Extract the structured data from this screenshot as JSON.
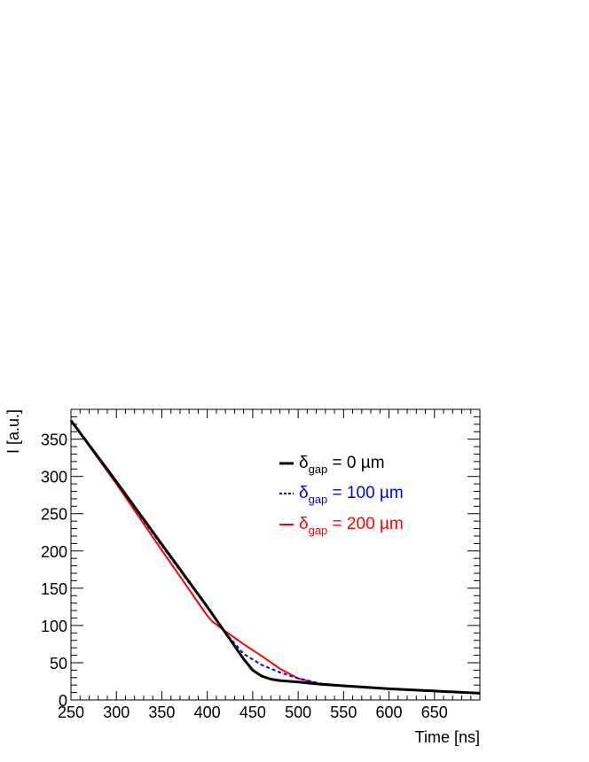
{
  "chart_data": {
    "type": "line",
    "title": "",
    "xlabel": "Time [ns]",
    "ylabel": "I [a.u.]",
    "xlim": [
      250,
      700
    ],
    "ylim": [
      0,
      390
    ],
    "xticks": [
      250,
      300,
      350,
      400,
      450,
      500,
      550,
      600,
      650
    ],
    "yticks": [
      0,
      50,
      100,
      150,
      200,
      250,
      300,
      350
    ],
    "grid": false,
    "legend_position": "top-right",
    "series": [
      {
        "name": "δgap = 0 µm",
        "legend": {
          "symbol": "δ",
          "sub": "gap",
          "rest": " = 0 µm"
        },
        "color": "#000000",
        "style": "solid",
        "width": 3,
        "x": [
          250,
          300,
          350,
          400,
          420,
          440,
          450,
          460,
          470,
          480,
          500,
          525,
          550,
          600,
          650,
          700
        ],
        "y": [
          375,
          293,
          209,
          125,
          90,
          55,
          40,
          32,
          28,
          26,
          24,
          21,
          19,
          15,
          12,
          9
        ]
      },
      {
        "name": "δgap = 100 µm",
        "legend": {
          "symbol": "δ",
          "sub": "gap",
          "rest": " = 100 µm"
        },
        "color": "#0000ff",
        "style": "dashed",
        "width": 2,
        "x": [
          250,
          300,
          350,
          400,
          420,
          440,
          460,
          480,
          500,
          525,
          550,
          600,
          650,
          700
        ],
        "y": [
          375,
          292,
          207,
          124,
          90,
          62,
          47,
          37,
          29,
          22,
          19,
          15,
          12,
          9
        ]
      },
      {
        "name": "δgap = 200 µm",
        "legend": {
          "symbol": "δ",
          "sub": "gap",
          "rest": " = 200 µm"
        },
        "color": "#ff0000",
        "style": "solid",
        "width": 2,
        "x": [
          250,
          300,
          350,
          400,
          405,
          420,
          440,
          460,
          480,
          500,
          525,
          550,
          600,
          650,
          700
        ],
        "y": [
          375,
          290,
          201,
          113,
          106,
          92,
          75,
          59,
          42,
          29,
          21,
          19,
          15,
          12,
          9
        ]
      }
    ]
  }
}
